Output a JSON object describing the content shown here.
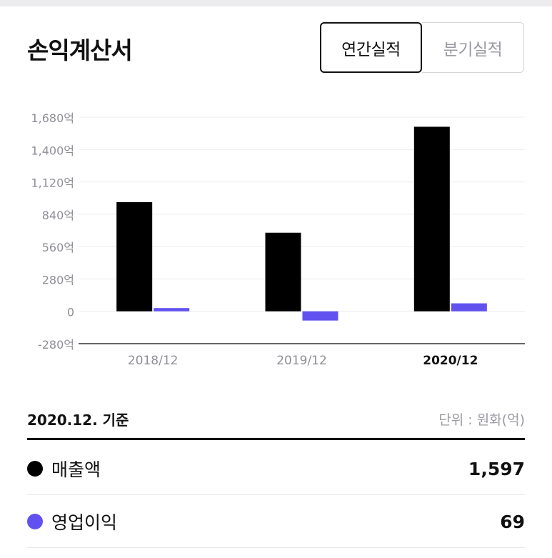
{
  "header": {
    "title": "손익계산서",
    "tabs": [
      {
        "label": "연간실적",
        "active": true
      },
      {
        "label": "분기실적",
        "active": false
      }
    ]
  },
  "chart_data": {
    "type": "bar",
    "categories": [
      "2018/12",
      "2019/12",
      "2020/12"
    ],
    "highlight_category": "2020/12",
    "series": [
      {
        "name": "매출액",
        "color": "#000000",
        "values": [
          945,
          680,
          1597
        ]
      },
      {
        "name": "영업이익",
        "color": "#6152f0",
        "values": [
          28,
          -80,
          69
        ]
      }
    ],
    "ylim": [
      -280,
      1680
    ],
    "yticks": [
      -280,
      0,
      280,
      560,
      840,
      1120,
      1400,
      1680
    ],
    "ytick_labels": [
      "-280억",
      "0",
      "280억",
      "560억",
      "840억",
      "1,120억",
      "1,400억",
      "1,680억"
    ],
    "grid": true
  },
  "summary": {
    "basis": "2020.12. 기준",
    "unit": "단위 : 원화(억)",
    "rows": [
      {
        "label": "매출액",
        "value": "1,597",
        "color": "#000000"
      },
      {
        "label": "영업이익",
        "value": "69",
        "color": "#6152f0"
      }
    ]
  }
}
